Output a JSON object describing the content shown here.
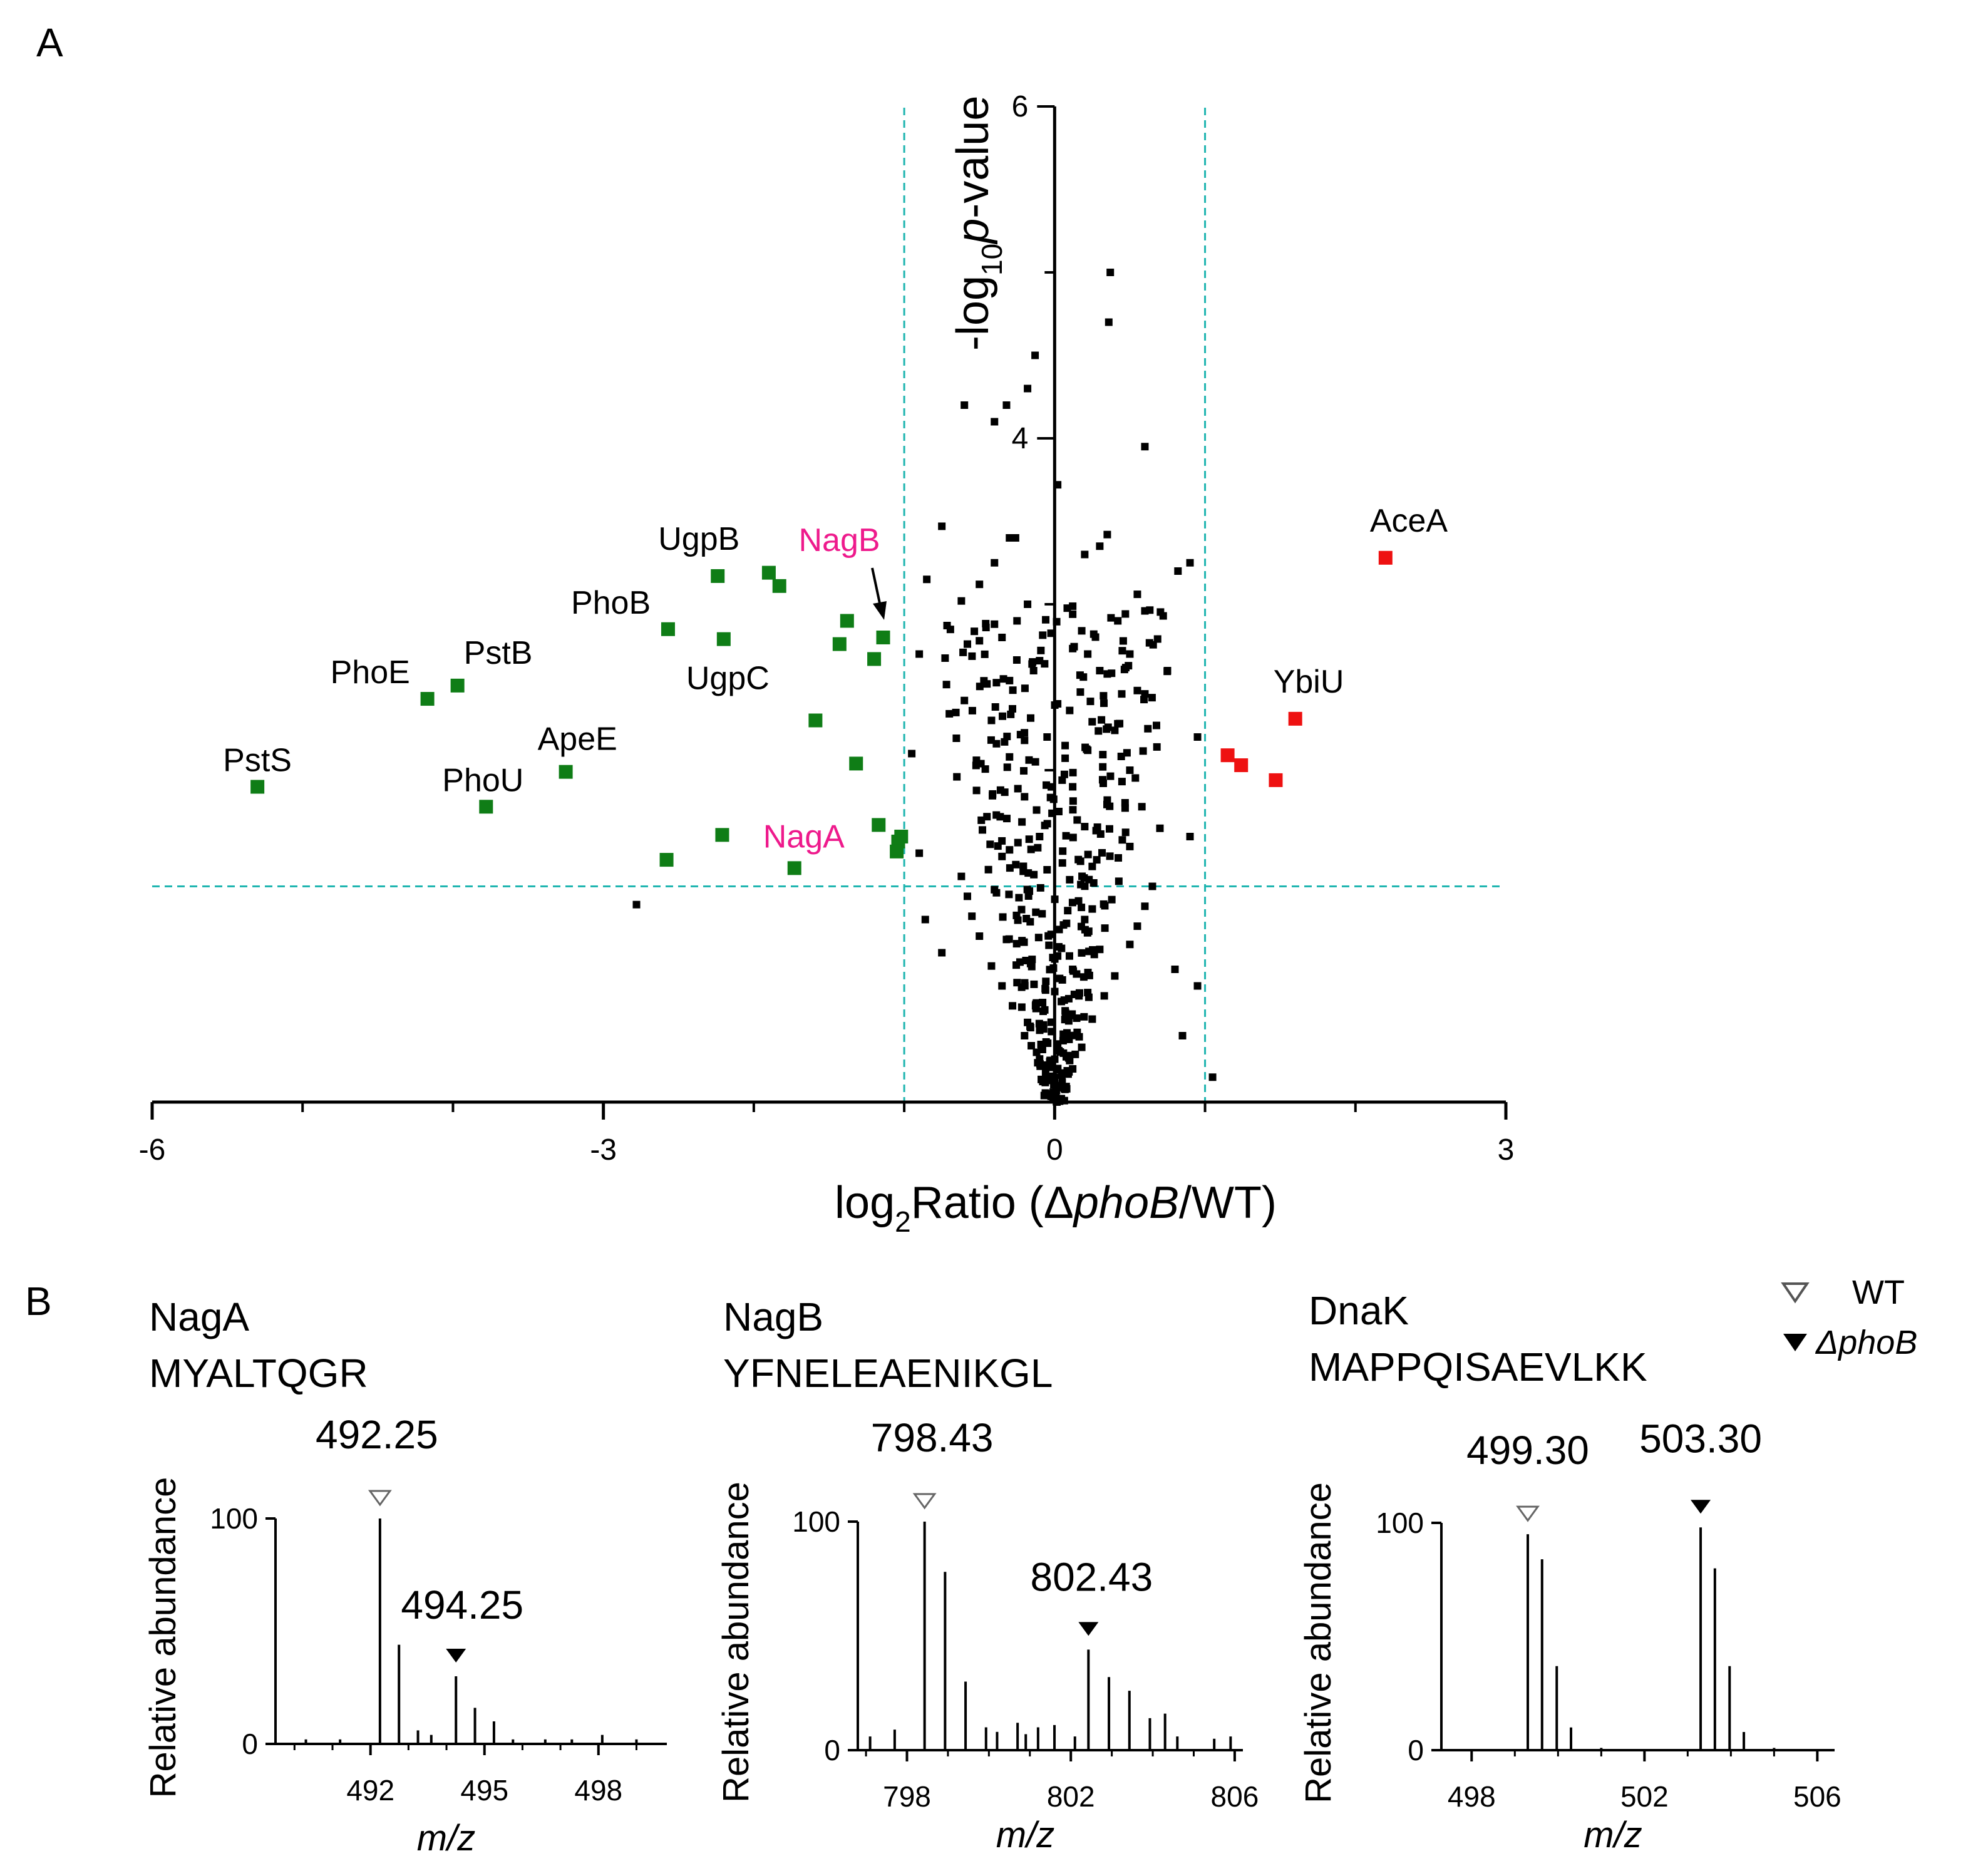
{
  "panel_labels": {
    "a": "A",
    "b": "B"
  },
  "colors": {
    "down": "#0f7d16",
    "up": "#ee1111",
    "background_points": "#000000",
    "threshold_line": "#1fb5b0",
    "highlight_label": "#ee1a8c"
  },
  "chart_data": [
    {
      "id": "volcano",
      "type": "scatter",
      "title": "",
      "xlabel": {
        "prefix": "log",
        "sub": "2",
        "text": "Ratio (Δ",
        "italic": "phoB",
        "suffix": "/WT)"
      },
      "ylabel": {
        "prefix": "-log",
        "sub": "10",
        "italic": "p",
        "suffix": "-value"
      },
      "xlim": [
        -6,
        3
      ],
      "ylim": [
        0,
        6
      ],
      "x_ticks": [
        -6,
        -3,
        0,
        3
      ],
      "y_ticks": [
        4,
        6
      ],
      "thresholds": {
        "x": [
          -1,
          1
        ],
        "y": 1.3
      },
      "labeled_points": [
        {
          "label": "PstS",
          "x": -5.3,
          "y": 1.9,
          "group": "down",
          "label_color": "black"
        },
        {
          "label": "PhoE",
          "x": -4.17,
          "y": 2.43,
          "group": "down",
          "label_color": "black"
        },
        {
          "label": "PstB",
          "x": -3.97,
          "y": 2.51,
          "group": "down",
          "label_color": "black"
        },
        {
          "label": "PhoU",
          "x": -3.78,
          "y": 1.78,
          "group": "down",
          "label_color": "black"
        },
        {
          "label": "ApeE",
          "x": -3.25,
          "y": 1.99,
          "group": "down",
          "label_color": "black"
        },
        {
          "label": "PhoB",
          "x": -2.57,
          "y": 2.85,
          "group": "down",
          "label_color": "black"
        },
        {
          "label": "UgpB",
          "x": -2.24,
          "y": 3.17,
          "group": "down",
          "label_color": "black"
        },
        {
          "label": "UgpC",
          "x": -2.2,
          "y": 2.79,
          "group": "down",
          "label_color": "black"
        },
        {
          "label": "NagB",
          "x": -1.14,
          "y": 2.8,
          "group": "down",
          "label_color": "highlight"
        },
        {
          "label": "NagA",
          "x": -1.73,
          "y": 1.41,
          "group": "down",
          "label_color": "highlight"
        },
        {
          "label": "AceA",
          "x": 2.2,
          "y": 3.28,
          "group": "up",
          "label_color": "black"
        },
        {
          "label": "YbiU",
          "x": 1.6,
          "y": 2.31,
          "group": "up",
          "label_color": "black"
        }
      ],
      "down_points": [
        [
          -1.9,
          3.19
        ],
        [
          -1.83,
          3.11
        ],
        [
          -1.38,
          2.9
        ],
        [
          -1.43,
          2.76
        ],
        [
          -1.2,
          2.67
        ],
        [
          -1.59,
          2.3
        ],
        [
          -1.32,
          2.04
        ],
        [
          -2.21,
          1.61
        ],
        [
          -2.58,
          1.46
        ],
        [
          -1.17,
          1.67
        ],
        [
          -1.02,
          1.6
        ],
        [
          -1.04,
          1.57
        ],
        [
          -1.05,
          1.51
        ]
      ],
      "up_points": [
        [
          1.15,
          2.09
        ],
        [
          1.24,
          2.03
        ],
        [
          1.47,
          1.94
        ]
      ],
      "background_points": [
        [
          -2.78,
          1.19
        ],
        [
          0.37,
          5.0
        ],
        [
          0.36,
          4.7
        ],
        [
          -0.13,
          4.5
        ],
        [
          -0.32,
          4.2
        ],
        [
          -0.6,
          4.2
        ],
        [
          -0.4,
          4.1
        ],
        [
          0.6,
          3.95
        ],
        [
          0.02,
          3.72
        ],
        [
          -0.75,
          3.47
        ],
        [
          -0.3,
          3.4
        ],
        [
          -0.26,
          3.4
        ],
        [
          0.35,
          3.42
        ],
        [
          0.2,
          3.3
        ],
        [
          0.9,
          3.25
        ],
        [
          0.82,
          3.2
        ],
        [
          -0.85,
          3.15
        ],
        [
          -0.18,
          4.3
        ],
        [
          0.3,
          3.35
        ],
        [
          -0.4,
          3.25
        ],
        [
          -0.9,
          2.7
        ],
        [
          0.75,
          2.6
        ],
        [
          -0.35,
          2.8
        ],
        [
          0.42,
          2.9
        ],
        [
          -0.14,
          2.6
        ],
        [
          0.22,
          2.7
        ],
        [
          0.62,
          2.25
        ],
        [
          0.95,
          2.2
        ],
        [
          -0.95,
          2.1
        ],
        [
          0.7,
          1.65
        ],
        [
          0.9,
          1.6
        ],
        [
          -0.9,
          1.5
        ],
        [
          -0.86,
          1.1
        ],
        [
          0.8,
          0.8
        ],
        [
          0.85,
          0.4
        ],
        [
          0.95,
          0.7
        ],
        [
          1.05,
          0.15
        ],
        [
          -0.75,
          0.9
        ]
      ],
      "cloud_points": [
        [
          -0.0,
          0.05
        ],
        [
          0.05,
          0.12
        ],
        [
          -0.06,
          0.18
        ],
        [
          0.1,
          0.25
        ],
        [
          -0.12,
          0.3
        ],
        [
          0.02,
          0.35
        ],
        [
          0.15,
          0.42
        ],
        [
          -0.18,
          0.48
        ],
        [
          0.07,
          0.55
        ],
        [
          -0.08,
          0.6
        ],
        [
          0.22,
          0.66
        ],
        [
          -0.25,
          0.72
        ],
        [
          0.12,
          0.8
        ],
        [
          -0.15,
          0.86
        ],
        [
          0.3,
          0.92
        ],
        [
          -0.32,
          0.98
        ],
        [
          0.03,
          1.04
        ],
        [
          0.2,
          1.1
        ],
        [
          -0.22,
          1.16
        ],
        [
          0.38,
          1.22
        ],
        [
          -0.4,
          1.28
        ],
        [
          0.1,
          1.34
        ],
        [
          -0.05,
          1.4
        ],
        [
          0.28,
          1.46
        ],
        [
          -0.3,
          1.52
        ],
        [
          0.45,
          1.58
        ],
        [
          -0.48,
          1.64
        ],
        [
          0.15,
          1.7
        ],
        [
          -0.12,
          1.76
        ],
        [
          0.35,
          1.82
        ],
        [
          -0.36,
          1.88
        ],
        [
          0.05,
          1.94
        ],
        [
          0.5,
          2.0
        ],
        [
          -0.52,
          2.06
        ],
        [
          0.22,
          2.12
        ],
        [
          -0.2,
          2.18
        ],
        [
          0.4,
          2.24
        ],
        [
          -0.42,
          2.3
        ],
        [
          0.1,
          2.36
        ],
        [
          -0.6,
          2.42
        ],
        [
          0.55,
          2.48
        ],
        [
          -0.3,
          2.54
        ],
        [
          0.3,
          2.6
        ],
        [
          -0.1,
          2.66
        ],
        [
          0.45,
          2.72
        ],
        [
          -0.5,
          2.78
        ],
        [
          0.18,
          2.84
        ],
        [
          -0.25,
          2.9
        ],
        [
          0.6,
          2.96
        ],
        [
          -0.62,
          3.02
        ],
        [
          0.08,
          0.08
        ],
        [
          -0.02,
          0.15
        ],
        [
          0.12,
          0.2
        ],
        [
          -0.1,
          0.26
        ],
        [
          0.18,
          0.33
        ],
        [
          -0.2,
          0.4
        ],
        [
          0.25,
          0.5
        ],
        [
          -0.28,
          0.58
        ],
        [
          0.33,
          0.64
        ],
        [
          -0.35,
          0.7
        ],
        [
          0.4,
          0.76
        ],
        [
          -0.42,
          0.82
        ],
        [
          0.02,
          0.88
        ],
        [
          0.5,
          0.95
        ],
        [
          -0.5,
          1.0
        ],
        [
          0.55,
          1.06
        ],
        [
          -0.55,
          1.12
        ],
        [
          0.6,
          1.18
        ],
        [
          -0.58,
          1.24
        ],
        [
          0.65,
          1.3
        ],
        [
          -0.62,
          1.36
        ],
        [
          0.25,
          1.42
        ],
        [
          -0.35,
          1.48
        ],
        [
          0.5,
          1.54
        ],
        [
          -0.1,
          1.6
        ],
        [
          0.2,
          1.66
        ],
        [
          -0.45,
          1.72
        ],
        [
          0.58,
          1.78
        ],
        [
          -0.2,
          1.84
        ],
        [
          0.12,
          1.9
        ],
        [
          -0.65,
          1.96
        ],
        [
          0.32,
          2.02
        ],
        [
          -0.3,
          2.08
        ],
        [
          0.68,
          2.14
        ],
        [
          -0.05,
          2.2
        ],
        [
          0.42,
          2.28
        ],
        [
          -0.7,
          2.34
        ],
        [
          0.02,
          2.4
        ],
        [
          0.6,
          2.46
        ],
        [
          -0.45,
          2.52
        ],
        [
          0.35,
          2.58
        ],
        [
          -0.15,
          2.64
        ],
        [
          0.5,
          2.7
        ],
        [
          -0.58,
          2.76
        ],
        [
          0.26,
          2.82
        ],
        [
          -0.4,
          2.88
        ],
        [
          0.12,
          2.94
        ],
        [
          -0.18,
          3.0
        ],
        [
          0.55,
          3.06
        ],
        [
          -0.5,
          3.12
        ]
      ]
    },
    {
      "id": "spectrum-naga",
      "type": "bar",
      "protein": "NagA",
      "peptide": "MYALTQGR",
      "xlabel": "m/z",
      "ylabel": "Relative abundance",
      "xlim": [
        489.5,
        499.8
      ],
      "ylim": [
        0,
        100
      ],
      "x_ticks": [
        492,
        495,
        498
      ],
      "y_ticks": [
        0,
        100
      ],
      "peak_labels": [
        {
          "text": "492.25",
          "mz": 492.25,
          "marker": "WT"
        },
        {
          "text": "494.25",
          "mz": 494.25,
          "marker": "ΔphoB"
        }
      ],
      "peaks": [
        [
          492.25,
          100
        ],
        [
          492.75,
          44
        ],
        [
          493.25,
          6
        ],
        [
          494.25,
          30
        ],
        [
          494.75,
          16
        ],
        [
          495.25,
          10
        ],
        [
          490.3,
          2
        ],
        [
          491.2,
          2
        ],
        [
          493.6,
          4
        ],
        [
          495.75,
          2
        ],
        [
          496.6,
          2
        ],
        [
          497.3,
          2
        ],
        [
          498.1,
          4
        ],
        [
          499.0,
          2
        ]
      ]
    },
    {
      "id": "spectrum-nagb",
      "type": "bar",
      "protein": "NagB",
      "peptide": "YFNELEAENIKGL",
      "xlabel": "m/z",
      "ylabel": "Relative abundance",
      "xlim": [
        796.8,
        806.2
      ],
      "ylim": [
        0,
        100
      ],
      "x_ticks": [
        798,
        802,
        806
      ],
      "y_ticks": [
        0,
        100
      ],
      "peak_labels": [
        {
          "text": "798.43",
          "mz": 798.43,
          "marker": "WT"
        },
        {
          "text": "802.43",
          "mz": 802.43,
          "marker": "ΔphoB"
        }
      ],
      "peaks": [
        [
          798.43,
          100
        ],
        [
          798.93,
          78
        ],
        [
          799.43,
          30
        ],
        [
          799.93,
          10
        ],
        [
          802.43,
          44
        ],
        [
          802.93,
          32
        ],
        [
          803.43,
          26
        ],
        [
          803.93,
          14
        ],
        [
          797.1,
          6
        ],
        [
          797.7,
          9
        ],
        [
          800.2,
          8
        ],
        [
          800.7,
          12
        ],
        [
          801.2,
          10
        ],
        [
          801.6,
          11
        ],
        [
          802.1,
          6
        ],
        [
          804.3,
          16
        ],
        [
          804.6,
          6
        ],
        [
          805.5,
          5
        ],
        [
          805.9,
          6
        ],
        [
          800.9,
          7
        ]
      ]
    },
    {
      "id": "spectrum-dnak",
      "type": "bar",
      "protein": "DnaK",
      "peptide": "MAPPQISAEVLKK",
      "xlabel": "m/z",
      "ylabel": "Relative abundance",
      "xlim": [
        497.3,
        506.4
      ],
      "ylim": [
        0,
        100
      ],
      "x_ticks": [
        498,
        502,
        506
      ],
      "y_ticks": [
        0,
        100
      ],
      "peak_labels": [
        {
          "text": "499.30",
          "mz": 499.3,
          "marker": "WT"
        },
        {
          "text": "503.30",
          "mz": 503.3,
          "marker": "ΔphoB"
        }
      ],
      "peaks": [
        [
          499.3,
          95
        ],
        [
          499.63,
          84
        ],
        [
          499.97,
          37
        ],
        [
          500.3,
          10
        ],
        [
          503.3,
          98
        ],
        [
          503.63,
          80
        ],
        [
          503.97,
          37
        ],
        [
          504.3,
          8
        ],
        [
          501.0,
          1
        ],
        [
          505.0,
          1
        ]
      ]
    }
  ],
  "legend": {
    "items": [
      {
        "label": "WT",
        "marker": "open-triangle"
      },
      {
        "label": "ΔphoB",
        "marker": "filled-triangle"
      }
    ]
  }
}
